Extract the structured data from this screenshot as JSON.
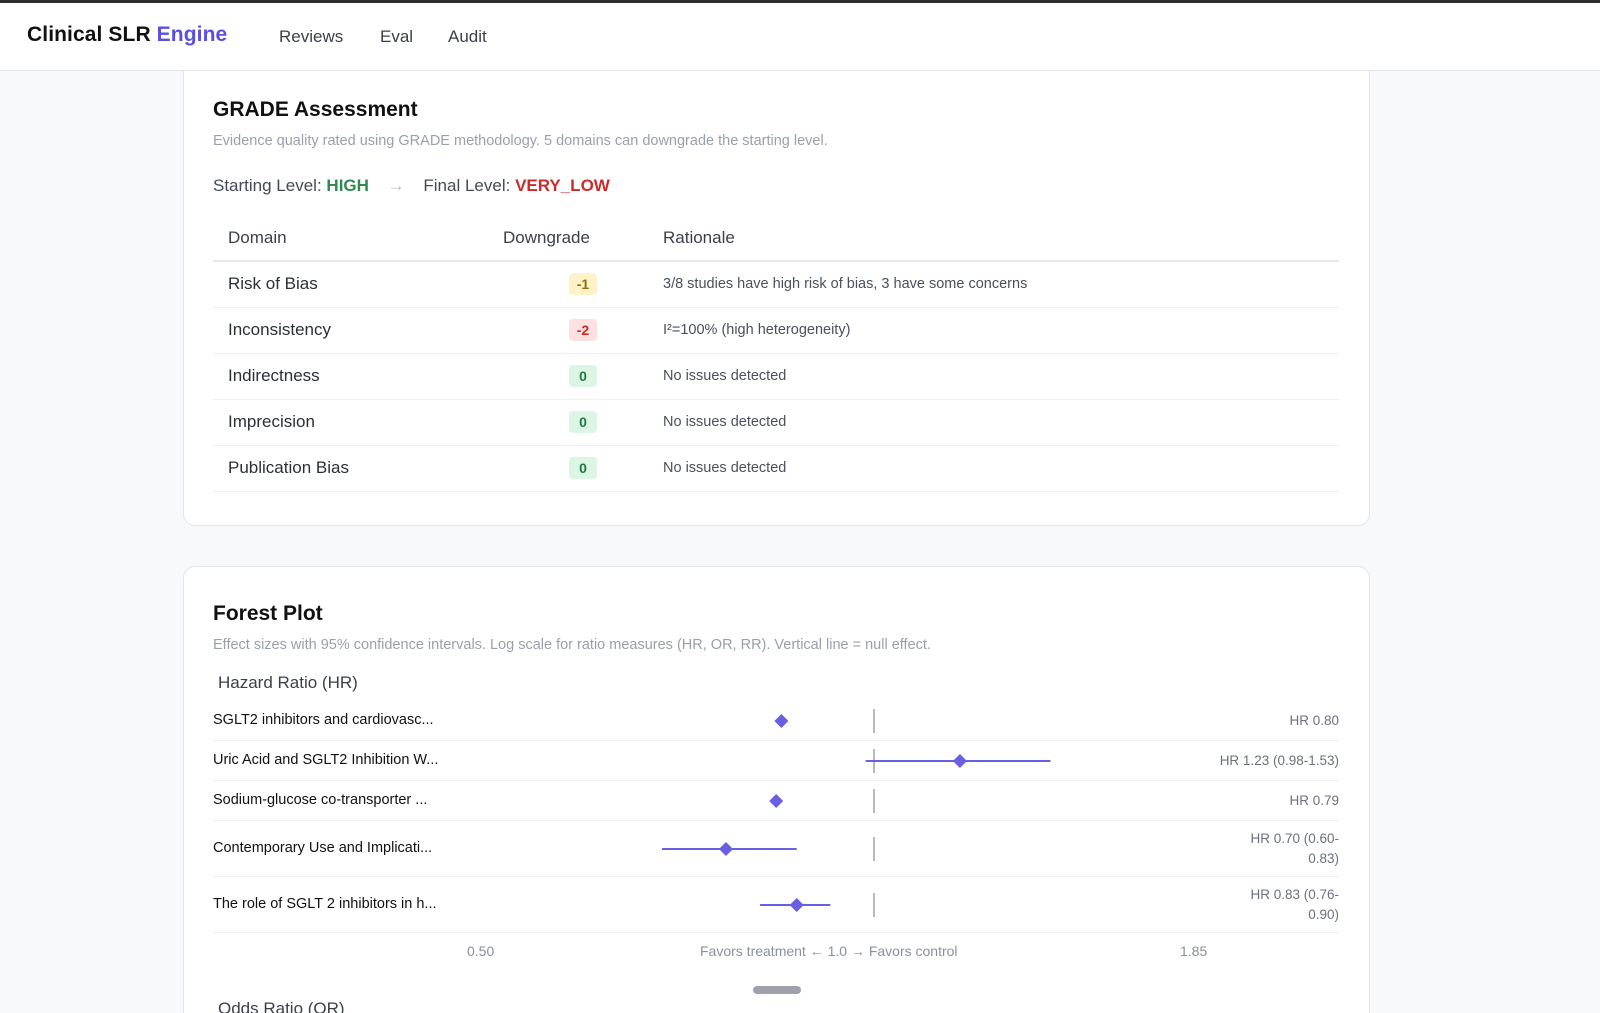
{
  "app": {
    "brand_main": "Clinical SLR",
    "brand_accent": "Engine",
    "nav": [
      "Reviews",
      "Eval",
      "Audit"
    ]
  },
  "grade": {
    "title": "GRADE Assessment",
    "subtitle": "Evidence quality rated using GRADE methodology. 5 domains can downgrade the starting level.",
    "starting_label": "Starting Level:",
    "starting_value": "HIGH",
    "arrow": "→",
    "final_label": "Final Level:",
    "final_value": "VERY_LOW",
    "headers": [
      "Domain",
      "Downgrade",
      "Rationale"
    ],
    "rows": [
      {
        "domain": "Risk of Bias",
        "downgrade": "-1",
        "rationale": "3/8 studies have high risk of bias, 3 have some concerns"
      },
      {
        "domain": "Inconsistency",
        "downgrade": "-2",
        "rationale": "I²=100% (high heterogeneity)"
      },
      {
        "domain": "Indirectness",
        "downgrade": "0",
        "rationale": "No issues detected"
      },
      {
        "domain": "Imprecision",
        "downgrade": "0",
        "rationale": "No issues detected"
      },
      {
        "domain": "Publication Bias",
        "downgrade": "0",
        "rationale": "No issues detected"
      }
    ]
  },
  "forest": {
    "title": "Forest Plot",
    "subtitle": "Effect sizes with 95% confidence intervals. Log scale for ratio measures (HR, OR, RR). Vertical line = null effect.",
    "section_hr": "Hazard Ratio (HR)",
    "axis_left": "0.50",
    "axis_center": "Favors treatment ← 1.0 → Favors control",
    "axis_right": "1.85",
    "next_section": "Odds Ratio (OR)",
    "colors": {
      "marker": "#6a5fe3",
      "null_line": "#9aa0ab"
    }
  },
  "chart_data": {
    "type": "scatter",
    "scale": "log",
    "xlim": [
      0.5,
      1.85
    ],
    "null_value": 1.0,
    "studies": [
      {
        "label": "SGLT2 inhibitors and cardiovasc...",
        "estimate": 0.8,
        "lower": null,
        "upper": null,
        "text": "HR 0.80"
      },
      {
        "label": "Uric Acid and SGLT2 Inhibition W...",
        "estimate": 1.23,
        "lower": 0.98,
        "upper": 1.53,
        "text": "HR 1.23 (0.98-1.53)"
      },
      {
        "label": "Sodium-glucose co-transporter ...",
        "estimate": 0.79,
        "lower": null,
        "upper": null,
        "text": "HR 0.79"
      },
      {
        "label": "Contemporary Use and Implicati...",
        "estimate": 0.7,
        "lower": 0.6,
        "upper": 0.83,
        "text_lines": [
          "HR 0.70 (0.60-",
          "0.83)"
        ]
      },
      {
        "label": "The role of SGLT 2 inhibitors in h...",
        "estimate": 0.83,
        "lower": 0.76,
        "upper": 0.9,
        "text_lines": [
          "HR 0.83 (0.76-",
          "0.90)"
        ]
      }
    ]
  }
}
